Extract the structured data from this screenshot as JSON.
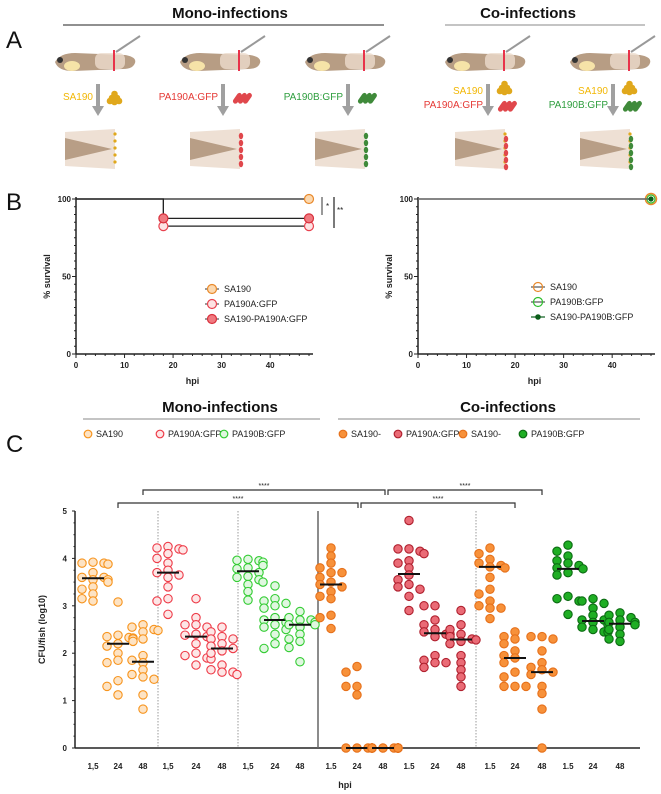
{
  "panels": {
    "a": "A",
    "b": "B",
    "c": "C"
  },
  "panel_a": {
    "mono_header": "Mono-infections",
    "co_header": "Co-infections",
    "columns": [
      {
        "labels": [
          {
            "text": "SA190",
            "color": "#f2b705"
          }
        ],
        "bacteria": [
          "sa"
        ]
      },
      {
        "labels": [
          {
            "text": "PA190A:GFP",
            "color": "#e53935"
          }
        ],
        "bacteria": [
          "pa_red"
        ]
      },
      {
        "labels": [
          {
            "text": "PA190B:GFP",
            "color": "#2e9e3e"
          }
        ],
        "bacteria": [
          "pa_green"
        ]
      },
      {
        "labels": [
          {
            "text": "SA190",
            "color": "#f2b705"
          },
          {
            "text": "PA190A:GFP",
            "color": "#e53935"
          }
        ],
        "bacteria": [
          "sa",
          "pa_red"
        ]
      },
      {
        "labels": [
          {
            "text": "SA190",
            "color": "#f2b705"
          },
          {
            "text": "PA190B:GFP",
            "color": "#2e9e3e"
          }
        ],
        "bacteria": [
          "sa",
          "pa_green"
        ]
      }
    ]
  },
  "chart_data": [
    {
      "type": "line",
      "subtype": "kaplan-meier",
      "title": "",
      "xlabel": "hpi",
      "ylabel": "% survival",
      "xlim": [
        0,
        48
      ],
      "ylim": [
        0,
        100
      ],
      "xticks": [
        "0",
        "10",
        "20",
        "30",
        "40"
      ],
      "yticks": [
        "0",
        "50",
        "100"
      ],
      "legend_position": "center",
      "series": [
        {
          "name": "SA190",
          "points": [
            [
              0,
              100
            ],
            [
              48,
              100
            ]
          ],
          "stroke": "#e8892b",
          "fill": "#fcd9b0"
        },
        {
          "name": "PA190A:GFP",
          "points": [
            [
              0,
              100
            ],
            [
              18,
              100
            ],
            [
              18,
              82.5
            ],
            [
              48,
              82.5
            ]
          ],
          "stroke": "#e8424f",
          "fill": "#fde3e3"
        },
        {
          "name": "SA190-PA190A:GFP",
          "points": [
            [
              0,
              100
            ],
            [
              18,
              100
            ],
            [
              18,
              87.5
            ],
            [
              48,
              87.5
            ]
          ],
          "stroke": "#d8303c",
          "fill": "#f07a80"
        }
      ],
      "significance": [
        "*",
        "**"
      ]
    },
    {
      "type": "line",
      "subtype": "kaplan-meier",
      "xlabel": "hpi",
      "ylabel": "% survival",
      "xlim": [
        0,
        48
      ],
      "ylim": [
        0,
        100
      ],
      "xticks": [
        "0",
        "10",
        "20",
        "30",
        "40"
      ],
      "yticks": [
        "0",
        "50",
        "100"
      ],
      "legend_position": "center",
      "series": [
        {
          "name": "SA190",
          "points": [
            [
              0,
              100
            ],
            [
              48,
              100
            ]
          ],
          "stroke": "#e8892b",
          "fill": "none"
        },
        {
          "name": "PA190B:GFP",
          "points": [
            [
              0,
              100
            ],
            [
              48,
              100
            ]
          ],
          "stroke": "#2fbf2f",
          "fill": "none"
        },
        {
          "name": "SA190-PA190B:GFP",
          "points": [
            [
              0,
              100
            ],
            [
              48,
              100
            ]
          ],
          "stroke": "#0b5e1a",
          "fill": "#0b5e1a"
        }
      ]
    },
    {
      "type": "scatter",
      "subtype": "dot-plot with median",
      "xlabel": "hpi",
      "ylabel": "CFU/fish (log10)",
      "ylim": [
        0,
        5
      ],
      "yticks": [
        "0",
        "1",
        "2",
        "3",
        "4",
        "5"
      ],
      "mono_header": "Mono-infections",
      "co_header": "Co-infections",
      "legend": [
        {
          "name": "SA190",
          "stroke": "#f7941d",
          "fill": "#fde3c4"
        },
        {
          "name": "PA190A:GFP",
          "stroke": "#ee3b48",
          "fill": "#fde6e6"
        },
        {
          "name": "PA190B:GFP",
          "stroke": "#33cc33",
          "fill": "#e0f7e0"
        },
        {
          "name": "SA190-",
          "stroke": "#e6701a",
          "fill": "#f7913a"
        },
        {
          "name": "PA190A:GFP",
          "stroke": "#b0202e",
          "fill": "#ea6b76"
        },
        {
          "name": "SA190-",
          "stroke": "#e6701a",
          "fill": "#f7913a"
        },
        {
          "name": "PA190B:GFP",
          "stroke": "#0b6b12",
          "fill": "#1fae24"
        }
      ],
      "groups": [
        {
          "style": 0,
          "x": "1,5",
          "median": 3.58,
          "values": [
            3.9,
            3.92,
            3.88,
            3.9,
            3.7,
            3.6,
            3.55,
            3.5,
            3.4,
            3.35,
            3.25,
            3.15,
            3.1,
            3.55,
            3.6
          ]
        },
        {
          "style": 0,
          "x": "24",
          "median": 2.2,
          "values": [
            3.08,
            2.35,
            2.38,
            2.33,
            2.3,
            2.25,
            2.2,
            2.15,
            2.0,
            1.85,
            1.8,
            1.42,
            1.3,
            1.12,
            2.32
          ]
        },
        {
          "style": 0,
          "x": "48",
          "median": 1.82,
          "values": [
            2.6,
            2.55,
            2.5,
            2.45,
            2.3,
            1.95,
            1.85,
            1.8,
            1.65,
            1.55,
            1.45,
            1.5,
            1.12,
            0.82,
            2.48
          ]
        },
        {
          "style": 1,
          "x": "1,5",
          "median": 3.7,
          "values": [
            4.25,
            4.22,
            4.2,
            4.18,
            4.1,
            4.0,
            3.9,
            3.75,
            3.7,
            3.6,
            3.4,
            3.15,
            3.1,
            2.82,
            3.65
          ]
        },
        {
          "style": 1,
          "x": "24",
          "median": 2.35,
          "values": [
            3.15,
            2.75,
            2.6,
            2.55,
            2.4,
            2.35,
            2.3,
            2.2,
            2.0,
            1.95,
            1.9,
            1.88,
            1.75,
            2.6,
            2.38
          ]
        },
        {
          "style": 1,
          "x": "48",
          "median": 2.1,
          "values": [
            2.55,
            2.45,
            2.35,
            2.3,
            2.2,
            2.1,
            2.05,
            2.0,
            1.75,
            1.65,
            1.6,
            1.55,
            1.6,
            2.3,
            2.15
          ]
        },
        {
          "style": 2,
          "x": "1,5",
          "median": 3.73,
          "values": [
            3.98,
            3.96,
            3.92,
            3.85,
            3.8,
            3.78,
            3.7,
            3.6,
            3.55,
            3.5,
            3.45,
            3.3,
            3.12,
            3.95,
            3.62
          ]
        },
        {
          "style": 2,
          "x": "24",
          "median": 2.7,
          "values": [
            3.42,
            3.15,
            3.1,
            3.05,
            3.0,
            2.75,
            2.7,
            2.65,
            2.6,
            2.55,
            2.4,
            2.2,
            2.1,
            2.95,
            2.5
          ]
        },
        {
          "style": 2,
          "x": "48",
          "median": 2.6,
          "values": [
            2.88,
            2.75,
            2.7,
            2.65,
            2.6,
            2.55,
            2.4,
            2.3,
            2.25,
            2.12,
            1.82,
            2.7,
            2.6
          ]
        },
        {
          "style": 3,
          "x": "1.5",
          "median": 3.45,
          "values": [
            4.22,
            4.05,
            3.9,
            3.8,
            3.7,
            3.6,
            3.5,
            3.45,
            3.4,
            3.3,
            3.2,
            3.15,
            2.8,
            2.75,
            2.52,
            3.7
          ]
        },
        {
          "style": 3,
          "x": "24",
          "median": 0,
          "values": [
            1.72,
            1.6,
            1.3,
            1.3,
            1.12,
            0,
            0,
            0,
            0,
            0,
            0,
            0,
            0
          ]
        },
        {
          "style": 3,
          "x": "48",
          "median": 0,
          "values": [
            0,
            0,
            0,
            0,
            0,
            0,
            0,
            0,
            0,
            0,
            0,
            0
          ]
        },
        {
          "style": 4,
          "x": "1.5",
          "median": 3.67,
          "values": [
            4.8,
            4.2,
            4.2,
            4.15,
            4.1,
            3.95,
            3.9,
            3.8,
            3.65,
            3.55,
            3.45,
            3.4,
            3.35,
            3.2,
            2.9
          ]
        },
        {
          "style": 4,
          "x": "24",
          "median": 2.42,
          "values": [
            3.0,
            3.0,
            2.7,
            2.6,
            2.5,
            2.45,
            2.4,
            2.4,
            2.35,
            1.95,
            1.85,
            1.8,
            1.8,
            1.7
          ]
        },
        {
          "style": 4,
          "x": "48",
          "median": 2.29,
          "values": [
            2.9,
            2.6,
            2.5,
            2.4,
            2.35,
            2.3,
            2.25,
            2.2,
            1.95,
            1.8,
            1.65,
            1.5,
            1.3,
            2.28
          ]
        },
        {
          "style": 5,
          "x": "1.5",
          "median": 3.82,
          "values": [
            4.22,
            4.1,
            3.98,
            3.9,
            3.85,
            3.82,
            3.8,
            3.6,
            3.35,
            3.25,
            3.1,
            3.0,
            2.95,
            2.95,
            2.73
          ]
        },
        {
          "style": 5,
          "x": "24",
          "median": 1.9,
          "values": [
            2.45,
            2.35,
            2.2,
            2.05,
            1.95,
            1.9,
            1.8,
            1.6,
            1.5,
            1.3,
            1.3,
            1.3,
            2.3
          ]
        },
        {
          "style": 5,
          "x": "48",
          "median": 1.6,
          "values": [
            2.35,
            2.35,
            2.3,
            2.05,
            1.8,
            1.7,
            1.65,
            1.6,
            1.55,
            1.3,
            1.15,
            0.82,
            0
          ]
        },
        {
          "style": 6,
          "x": "1.5",
          "median": 3.78,
          "values": [
            4.28,
            4.15,
            4.05,
            3.95,
            3.9,
            3.85,
            3.8,
            3.78,
            3.7,
            3.65,
            3.2,
            3.15,
            3.1,
            2.82
          ]
        },
        {
          "style": 6,
          "x": "24",
          "median": 2.68,
          "values": [
            3.15,
            3.1,
            3.05,
            2.95,
            2.8,
            2.7,
            2.65,
            2.6,
            2.55,
            2.5,
            2.45,
            2.45,
            2.7
          ]
        },
        {
          "style": 6,
          "x": "48",
          "median": 2.62,
          "values": [
            2.85,
            2.8,
            2.75,
            2.7,
            2.65,
            2.6,
            2.55,
            2.5,
            2.4,
            2.3,
            2.25,
            2.65
          ]
        }
      ],
      "significance": [
        "****",
        "****",
        "****",
        "****"
      ]
    }
  ]
}
